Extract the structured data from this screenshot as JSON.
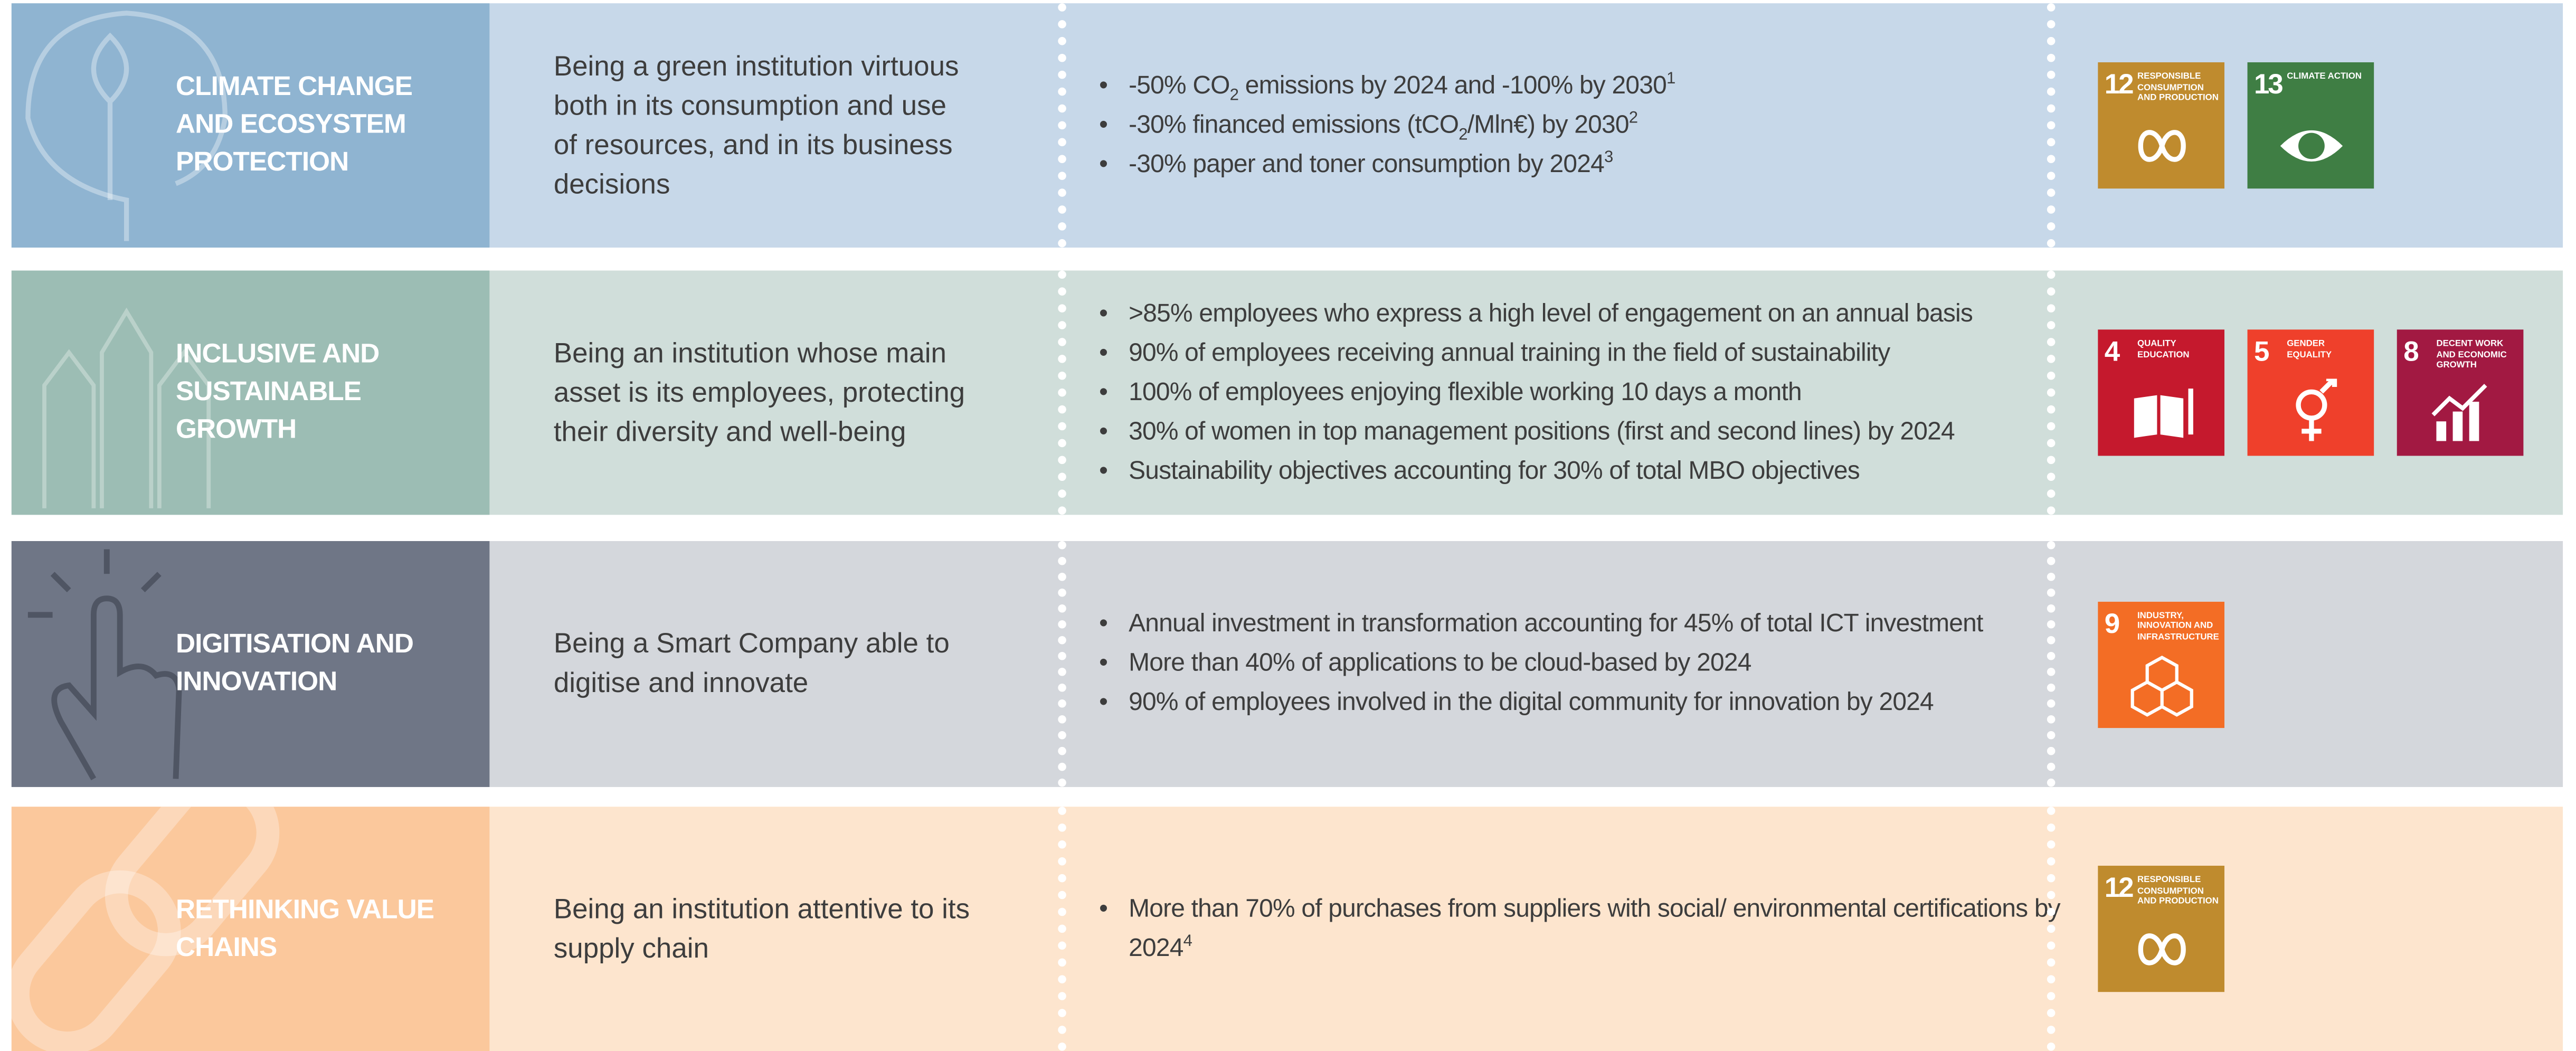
{
  "rows": [
    {
      "title_lines": [
        "CLIMATE CHANGE",
        "AND ECOSYSTEM",
        "PROTECTION"
      ],
      "description_lines": [
        "Being a green institution virtuous",
        "both in its consumption and use",
        "of resources, and in its business",
        "decisions"
      ],
      "bullets": [
        [
          "-50% CO",
          {
            "sub": "2"
          },
          " emissions by 2024 and -100% by 2030",
          {
            "sup": "1"
          }
        ],
        [
          "-30% financed emissions (tCO",
          {
            "sub": "2"
          },
          "/Mln€) by 2030",
          {
            "sup": "2"
          }
        ],
        [
          "-30% paper and toner consumption by 2024",
          {
            "sup": "3"
          }
        ]
      ],
      "goals": [
        {
          "number": "12",
          "label": "RESPONSIBLE CONSUMPTION AND PRODUCTION",
          "color": "#bf8b2e"
        },
        {
          "number": "13",
          "label": "CLIMATE ACTION",
          "color": "#3f7e44"
        }
      ],
      "colors": {
        "left": "#8fb4d1",
        "right": "#c7d8e9"
      }
    },
    {
      "title_lines": [
        "INCLUSIVE AND",
        "SUSTAINABLE",
        "GROWTH"
      ],
      "description_lines": [
        "Being an institution whose main",
        "asset is its employees, protecting",
        "their diversity and well-being"
      ],
      "bullets": [
        [
          ">85% employees who express a high level of engagement on an annual basis"
        ],
        [
          "90% of employees receiving annual training in the field of sustainability"
        ],
        [
          "100% of employees enjoying flexible working 10 days a month"
        ],
        [
          "30% of women in top management positions (first and second lines) by 2024"
        ],
        [
          "Sustainability objectives accounting for 30% of total MBO objectives"
        ]
      ],
      "goals": [
        {
          "number": "4",
          "label": "QUALITY EDUCATION",
          "color": "#c5192d"
        },
        {
          "number": "5",
          "label": "GENDER EQUALITY",
          "color": "#ef402b"
        },
        {
          "number": "8",
          "label": "DECENT WORK AND ECONOMIC GROWTH",
          "color": "#a21942"
        }
      ],
      "colors": {
        "left": "#9cbdb4",
        "right": "#d0deda"
      }
    },
    {
      "title_lines": [
        "DIGITISATION AND",
        "INNOVATION"
      ],
      "description_lines": [
        "Being a Smart Company able to",
        "digitise and innovate"
      ],
      "bullets": [
        [
          "Annual investment in transformation accounting for 45% of total ICT investment"
        ],
        [
          "More than 40% of applications to be cloud-based by 2024"
        ],
        [
          "90% of employees involved in the digital community for innovation by 2024"
        ]
      ],
      "goals": [
        {
          "number": "9",
          "label": "INDUSTRY, INNOVATION AND INFRASTRUCTURE",
          "color": "#f36d25"
        }
      ],
      "colors": {
        "left": "#6f7686",
        "right": "#d4d7dc"
      }
    },
    {
      "title_lines": [
        "RETHINKING VALUE",
        "CHAINS"
      ],
      "description_lines": [
        "Being an institution attentive to its",
        "supply chain"
      ],
      "bullets": [
        [
          "More than 70% of purchases from suppliers with social/ environmental certifications by 2024",
          {
            "sup": "4"
          }
        ]
      ],
      "goals": [
        {
          "number": "12",
          "label": "RESPONSIBLE CONSUMPTION AND PRODUCTION",
          "color": "#bf8b2e"
        }
      ],
      "colors": {
        "left": "#fbc89c",
        "right": "#fde5ce"
      }
    }
  ]
}
